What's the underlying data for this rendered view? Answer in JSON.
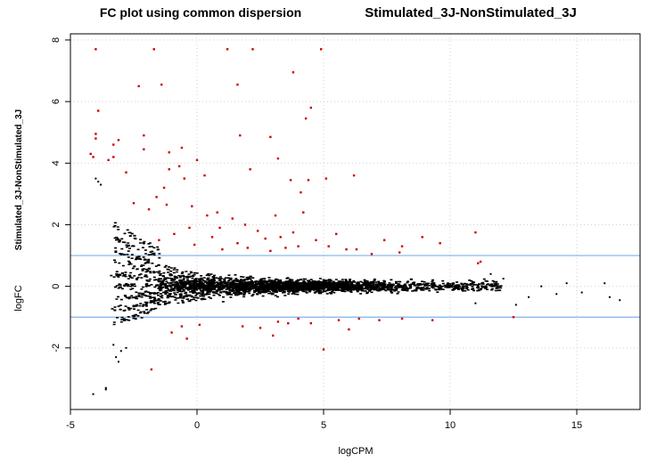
{
  "chart_data": {
    "type": "scatter",
    "title": "FC plot using common dispersion",
    "subtitle": "Stimulated_3J-NonStimulated_3J",
    "xlabel": "logCPM",
    "ylabel": "logFC",
    "ylabel_sub": "Stimulated_3J-NonStimulated_3J",
    "xlim": [
      -5,
      17.5
    ],
    "ylim": [
      -4,
      8.2
    ],
    "xticks": [
      -5,
      0,
      5,
      10,
      15
    ],
    "yticks": [
      -2,
      0,
      2,
      4,
      6,
      8
    ],
    "grid": true,
    "reference_lines_y": [
      1,
      -1
    ],
    "colors": {
      "background": "#ffffff",
      "not_significant": "#000000",
      "significant": "#cc0000",
      "reference_line": "#7fb2ea",
      "grid": "#d0d0d0"
    },
    "series": [
      {
        "points": [
          [
            -4.0,
            7.7
          ],
          [
            -1.7,
            7.7
          ],
          [
            1.2,
            7.7
          ],
          [
            2.2,
            7.7
          ],
          [
            4.9,
            7.7
          ],
          [
            3.8,
            6.95
          ],
          [
            -2.3,
            6.5
          ],
          [
            -1.4,
            6.55
          ],
          [
            1.6,
            6.55
          ],
          [
            4.5,
            5.8
          ],
          [
            4.3,
            5.45
          ],
          [
            -3.9,
            5.7
          ],
          [
            -4.0,
            4.95
          ],
          [
            -4.0,
            4.8
          ],
          [
            -2.1,
            4.9
          ],
          [
            2.9,
            4.85
          ],
          [
            1.7,
            4.9
          ],
          [
            -3.3,
            4.6
          ],
          [
            -3.1,
            4.75
          ],
          [
            -2.1,
            4.45
          ],
          [
            -1.1,
            4.35
          ],
          [
            -4.2,
            4.3
          ],
          [
            -4.1,
            4.2
          ],
          [
            -3.5,
            4.1
          ],
          [
            -3.3,
            4.2
          ],
          [
            -2.8,
            3.7
          ],
          [
            0.0,
            4.1
          ],
          [
            -0.6,
            4.5
          ],
          [
            -0.7,
            3.9
          ],
          [
            -1.1,
            3.8
          ],
          [
            3.2,
            4.15
          ],
          [
            0.3,
            3.6
          ],
          [
            -1.3,
            3.2
          ],
          [
            -1.6,
            2.9
          ],
          [
            -0.5,
            3.5
          ],
          [
            2.1,
            3.8
          ],
          [
            3.7,
            3.45
          ],
          [
            4.1,
            3.05
          ],
          [
            4.4,
            3.45
          ],
          [
            5.1,
            3.5
          ],
          [
            6.2,
            3.6
          ],
          [
            -2.5,
            2.7
          ],
          [
            -1.9,
            2.5
          ],
          [
            -1.2,
            2.65
          ],
          [
            -0.2,
            2.6
          ],
          [
            0.4,
            2.3
          ],
          [
            0.8,
            2.4
          ],
          [
            1.4,
            2.2
          ],
          [
            1.9,
            2.0
          ],
          [
            2.4,
            1.8
          ],
          [
            3.1,
            2.3
          ],
          [
            3.3,
            1.6
          ],
          [
            4.2,
            2.4
          ],
          [
            4.7,
            1.5
          ],
          [
            5.5,
            1.7
          ],
          [
            6.3,
            1.2
          ],
          [
            7.4,
            1.5
          ],
          [
            8.1,
            1.3
          ],
          [
            8.9,
            1.6
          ],
          [
            9.6,
            1.4
          ],
          [
            11.0,
            1.75
          ],
          [
            11.2,
            0.8
          ],
          [
            11.1,
            0.75
          ],
          [
            8.0,
            1.1
          ],
          [
            6.9,
            1.05
          ],
          [
            5.9,
            1.2
          ],
          [
            -1.5,
            1.5
          ],
          [
            -0.9,
            1.7
          ],
          [
            -0.1,
            1.35
          ],
          [
            0.6,
            1.6
          ],
          [
            1.0,
            1.2
          ],
          [
            1.6,
            1.4
          ],
          [
            2.7,
            1.55
          ],
          [
            3.5,
            1.25
          ],
          [
            4.0,
            1.3
          ],
          [
            5.2,
            1.3
          ],
          [
            -0.3,
            1.9
          ],
          [
            0.9,
            1.9
          ],
          [
            2.0,
            1.25
          ],
          [
            2.9,
            1.15
          ],
          [
            3.8,
            1.75
          ],
          [
            -1.8,
            -2.7
          ],
          [
            5.0,
            -2.05
          ],
          [
            3.6,
            -1.2
          ],
          [
            3.2,
            -1.15
          ],
          [
            4.5,
            -1.2
          ],
          [
            -0.6,
            -1.3
          ],
          [
            -0.4,
            -1.7
          ],
          [
            0.1,
            -1.25
          ],
          [
            -1.0,
            -1.5
          ],
          [
            1.8,
            -1.3
          ],
          [
            2.5,
            -1.35
          ],
          [
            4.0,
            -1.05
          ],
          [
            5.6,
            -1.1
          ],
          [
            6.4,
            -1.05
          ],
          [
            7.2,
            -1.1
          ],
          [
            8.1,
            -1.05
          ],
          [
            9.3,
            -1.1
          ],
          [
            12.5,
            -1.0
          ],
          [
            6.0,
            -1.4
          ],
          [
            3.0,
            -1.6
          ]
        ],
        "color": "#cc0000"
      },
      {
        "outline_points": [
          [
            -4.0,
            3.5
          ],
          [
            -3.9,
            3.4
          ],
          [
            -3.8,
            3.3
          ],
          [
            -3.6,
            -3.35
          ],
          [
            -3.6,
            -3.3
          ],
          [
            -4.1,
            -3.5
          ],
          [
            -3.2,
            -2.3
          ],
          [
            -3.1,
            -2.45
          ],
          [
            -3.0,
            -2.1
          ],
          [
            -2.8,
            -2.0
          ],
          [
            -3.3,
            -1.9
          ],
          [
            14.6,
            0.1
          ],
          [
            15.2,
            -0.2
          ],
          [
            16.1,
            0.1
          ],
          [
            16.3,
            -0.35
          ],
          [
            16.7,
            -0.45
          ],
          [
            14.2,
            -0.25
          ],
          [
            13.6,
            0.0
          ],
          [
            13.1,
            -0.35
          ],
          [
            12.6,
            -0.6
          ],
          [
            12.1,
            0.25
          ],
          [
            11.6,
            0.4
          ],
          [
            11.0,
            -0.55
          ]
        ],
        "distribution": "dense cloud centred near logFC 0 over logCPM -3.5 to 13, spreading wider at low logCPM (streaks toward ±2.5 near logCPM -3) and narrowing to about ±0.5 at high logCPM",
        "approx_count": 12000,
        "color": "#000000"
      }
    ]
  }
}
